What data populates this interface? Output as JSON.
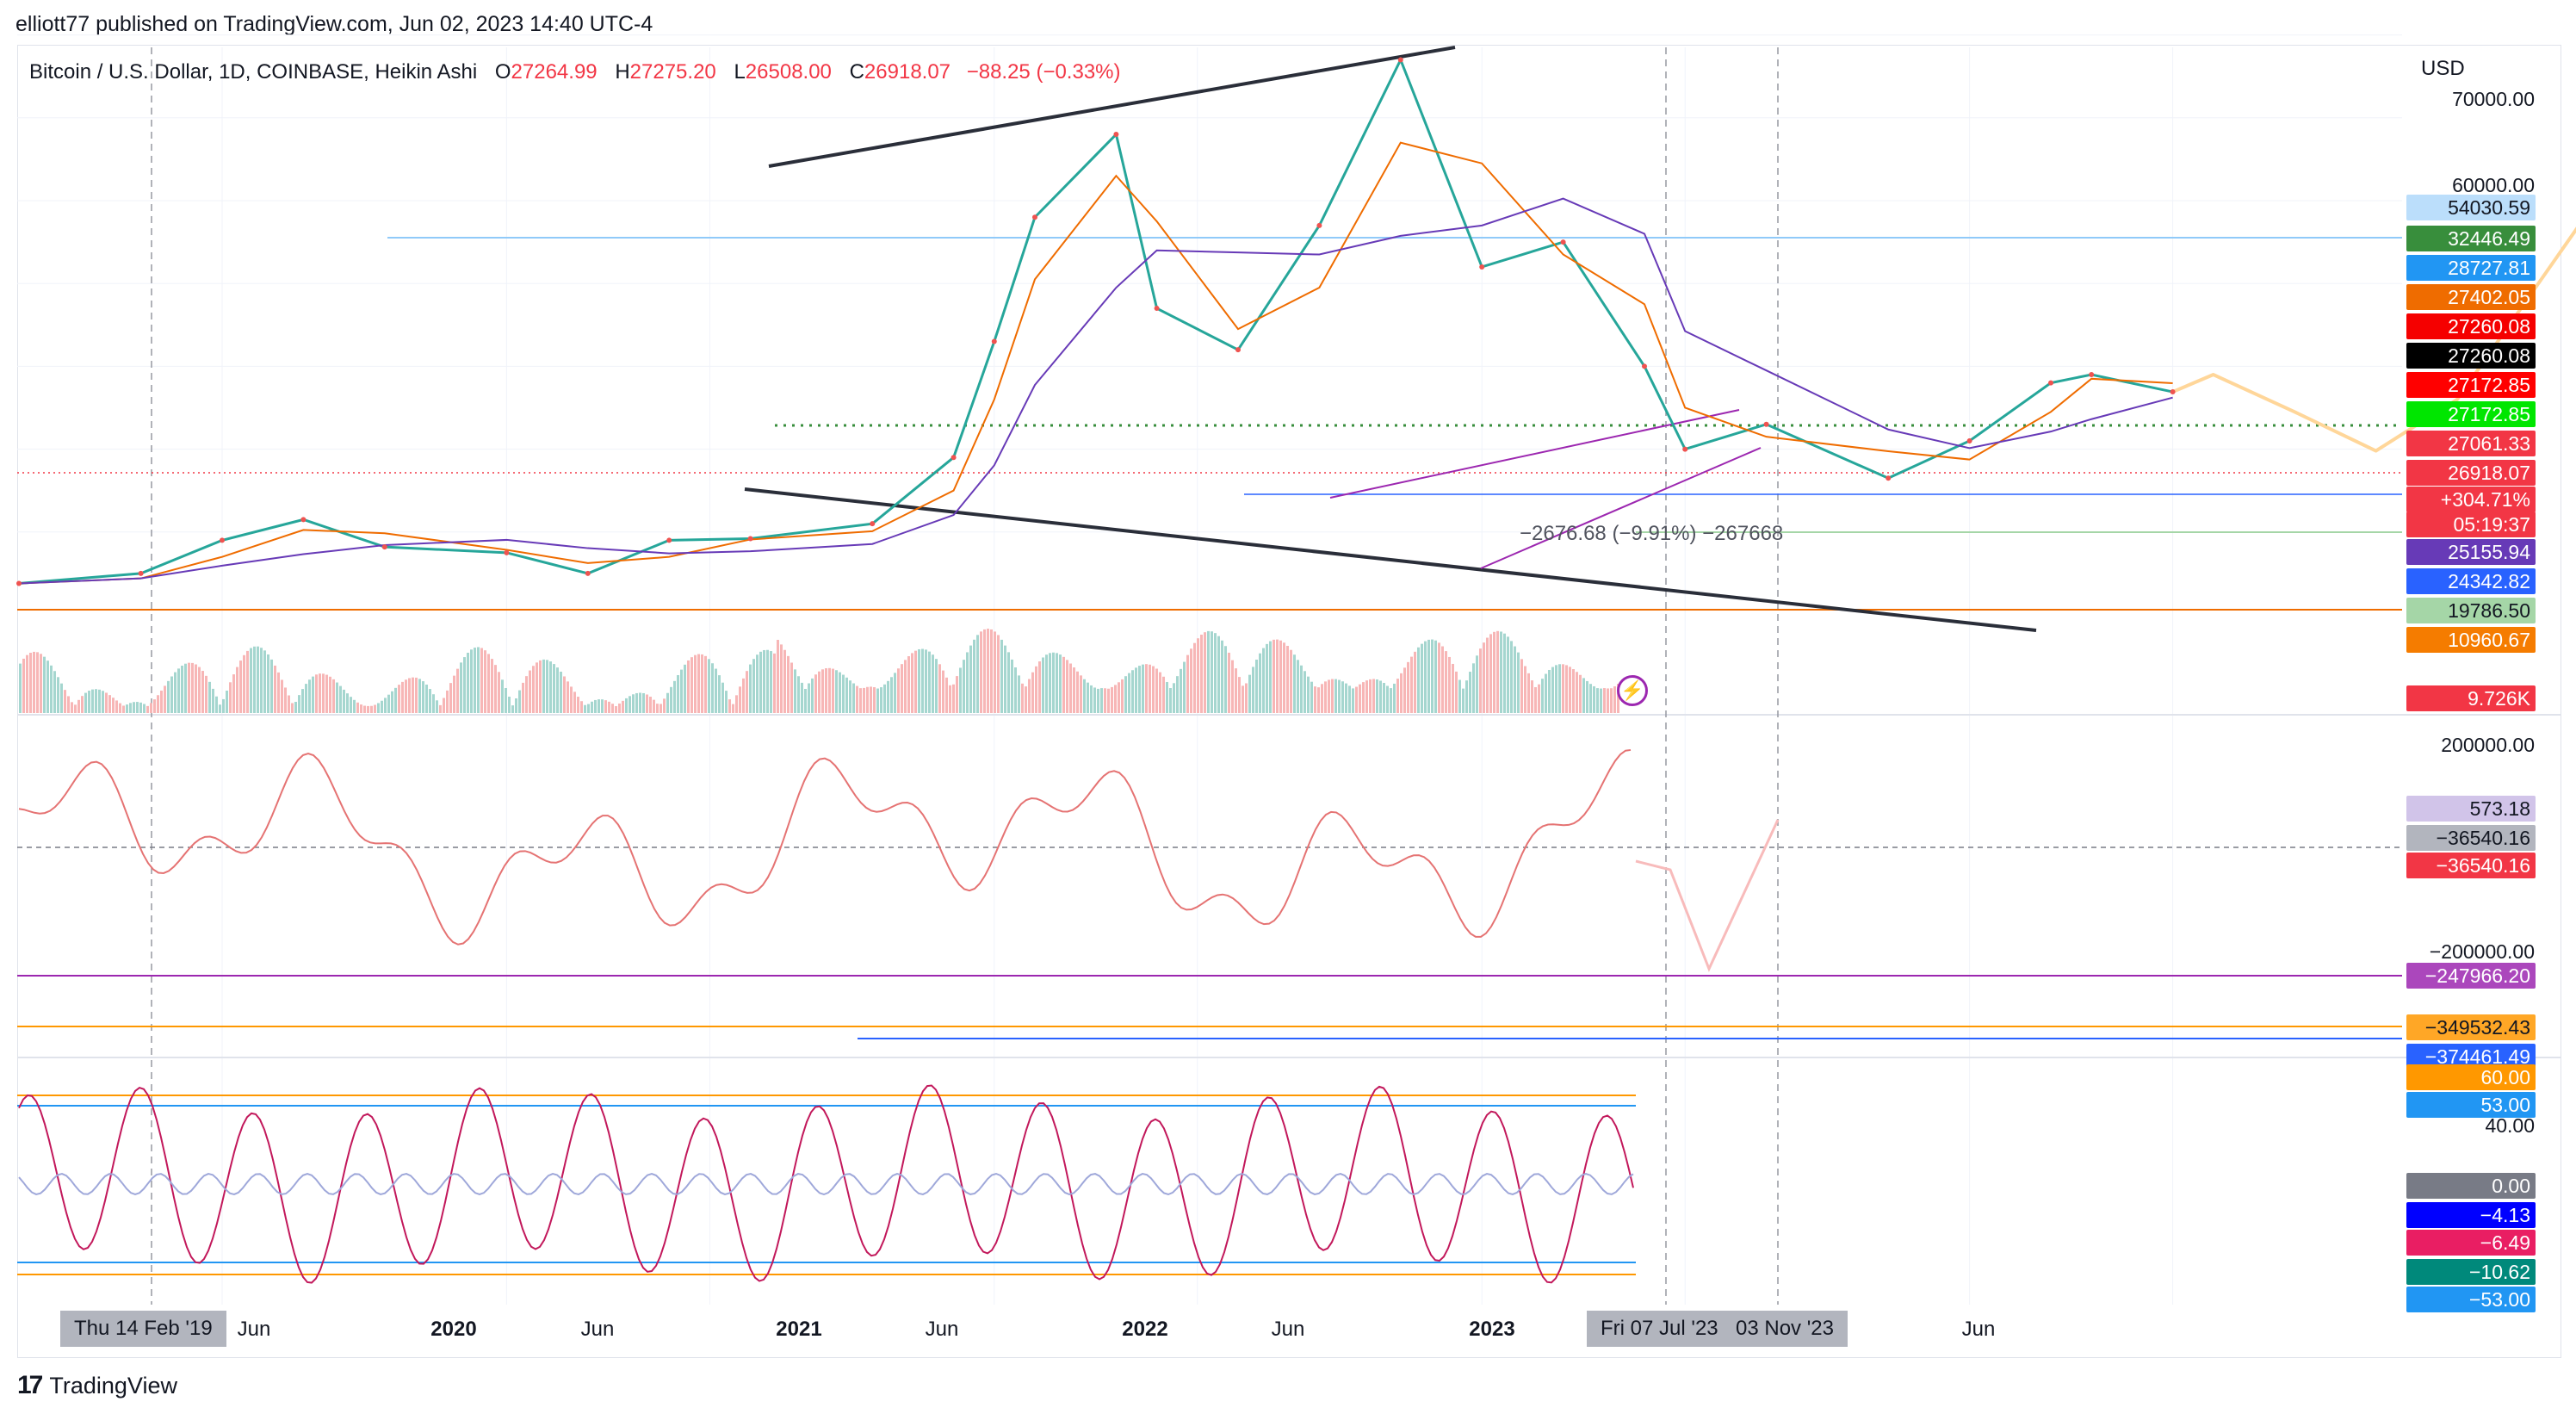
{
  "publisher": "elliott77 published on TradingView.com, Jun 02, 2023 14:40 UTC-4",
  "legend": {
    "symbol": "Bitcoin / U.S. Dollar, 1D, COINBASE, Heikin Ashi",
    "open_label": "O",
    "open": "27264.99",
    "high_label": "H",
    "high": "27275.20",
    "low_label": "L",
    "low": "26508.00",
    "close_label": "C",
    "close": "26918.07",
    "change": "−88.25 (−0.33%)"
  },
  "currency": "USD",
  "measure_label": "−2676.68 (−9.91%) −267668",
  "price_scale": [
    "70000.00",
    "60000.00"
  ],
  "oscillator_scale": [
    "200000.00",
    "−200000.00"
  ],
  "stoch_scale": [
    "40.00"
  ],
  "price_tags": [
    {
      "text": "54030.59",
      "bg": "#bbdefb",
      "fg": "#131722"
    },
    {
      "text": "32446.49",
      "bg": "#388e3c",
      "fg": "#ffffff"
    },
    {
      "text": "28727.81",
      "bg": "#2196f3",
      "fg": "#ffffff"
    },
    {
      "text": "27402.05",
      "bg": "#ef6c00",
      "fg": "#ffffff"
    },
    {
      "text": "27260.08",
      "bg": "#f50000",
      "fg": "#ffffff"
    },
    {
      "text": "27260.08",
      "bg": "#000000",
      "fg": "#ffffff"
    },
    {
      "text": "27172.85",
      "bg": "#ff0000",
      "fg": "#ffffff"
    },
    {
      "text": "27172.85",
      "bg": "#00e600",
      "fg": "#ffffff"
    },
    {
      "text": "27061.33",
      "bg": "#f23645",
      "fg": "#ffffff"
    },
    {
      "text": "26918.07",
      "bg": "#f23645",
      "fg": "#ffffff"
    },
    {
      "text": "+304.71%",
      "bg": "#f23645",
      "fg": "#ffffff"
    },
    {
      "text": "05:19:37",
      "bg": "#f23645",
      "fg": "#ffffff"
    },
    {
      "text": "25155.94",
      "bg": "#673ab7",
      "fg": "#ffffff"
    },
    {
      "text": "24342.82",
      "bg": "#2962ff",
      "fg": "#ffffff"
    },
    {
      "text": "19786.50",
      "bg": "#a5d6a7",
      "fg": "#131722"
    },
    {
      "text": "10960.67",
      "bg": "#f57c00",
      "fg": "#ffffff"
    },
    {
      "text": "9.726K",
      "bg": "#f23645",
      "fg": "#ffffff"
    }
  ],
  "osc_tags": [
    {
      "text": "573.18",
      "bg": "#d1c4e9",
      "fg": "#131722"
    },
    {
      "text": "−36540.16",
      "bg": "#b2b5be",
      "fg": "#131722"
    },
    {
      "text": "−36540.16",
      "bg": "#f23645",
      "fg": "#ffffff"
    },
    {
      "text": "−247966.20",
      "bg": "#ab47bc",
      "fg": "#ffffff"
    },
    {
      "text": "−349532.43",
      "bg": "#ffa726",
      "fg": "#131722"
    },
    {
      "text": "−374461.49",
      "bg": "#2962ff",
      "fg": "#ffffff"
    }
  ],
  "stoch_tags": [
    {
      "text": "60.00",
      "bg": "#ff9800",
      "fg": "#ffffff"
    },
    {
      "text": "53.00",
      "bg": "#2196f3",
      "fg": "#ffffff"
    },
    {
      "text": "0.00",
      "bg": "#787b86",
      "fg": "#ffffff"
    },
    {
      "text": "−4.13",
      "bg": "#0000ff",
      "fg": "#ffffff"
    },
    {
      "text": "−6.49",
      "bg": "#e91e63",
      "fg": "#ffffff"
    },
    {
      "text": "−10.62",
      "bg": "#00897b",
      "fg": "#ffffff"
    },
    {
      "text": "−53.00",
      "bg": "#2196f3",
      "fg": "#ffffff"
    }
  ],
  "time_axis": [
    {
      "text": "Jun",
      "bold": false
    },
    {
      "text": "2020",
      "bold": true
    },
    {
      "text": "Jun",
      "bold": false
    },
    {
      "text": "2021",
      "bold": true
    },
    {
      "text": "Jun",
      "bold": false
    },
    {
      "text": "2022",
      "bold": true
    },
    {
      "text": "Jun",
      "bold": false
    },
    {
      "text": "2023",
      "bold": true
    },
    {
      "text": "Jun",
      "bold": false
    }
  ],
  "crosshair_labels": [
    "Thu 14 Feb '19",
    "Fri 07 Jul '23",
    "03 Nov '23"
  ],
  "brand": "TradingView",
  "chart_data": {
    "type": "line",
    "title": "Bitcoin / U.S. Dollar, 1D, COINBASE, Heikin Ashi",
    "xlabel": "",
    "ylabel": "",
    "ylim": [
      0,
      73000
    ],
    "x": [
      "2019-01",
      "2019-04",
      "2019-06",
      "2019-08",
      "2019-10",
      "2020-01",
      "2020-03",
      "2020-05",
      "2020-07",
      "2020-10",
      "2020-12",
      "2021-01",
      "2021-02",
      "2021-04",
      "2021-05",
      "2021-07",
      "2021-09",
      "2021-11",
      "2022-01",
      "2022-03",
      "2022-05",
      "2022-06",
      "2022-08",
      "2022-11",
      "2023-01",
      "2023-03",
      "2023-04",
      "2023-06"
    ],
    "series": [
      {
        "values": [
          3800,
          5000,
          9000,
          11500,
          8200,
          7500,
          5000,
          9000,
          9200,
          11000,
          19000,
          33000,
          48000,
          58000,
          37000,
          32000,
          47000,
          67000,
          42000,
          45000,
          30000,
          20000,
          23000,
          16500,
          21000,
          28000,
          29000,
          26918
        ]
      }
    ],
    "projection": {
      "x": [
        "2023-06",
        "2023-07",
        "2023-09",
        "2023-11",
        "2024-01",
        "2024-05"
      ],
      "y": [
        26918,
        29000,
        24500,
        19800,
        26000,
        54030
      ]
    },
    "horizontal_levels": [
      54030.59,
      27172.85,
      26918.07,
      24342.82,
      19786.5
    ]
  }
}
